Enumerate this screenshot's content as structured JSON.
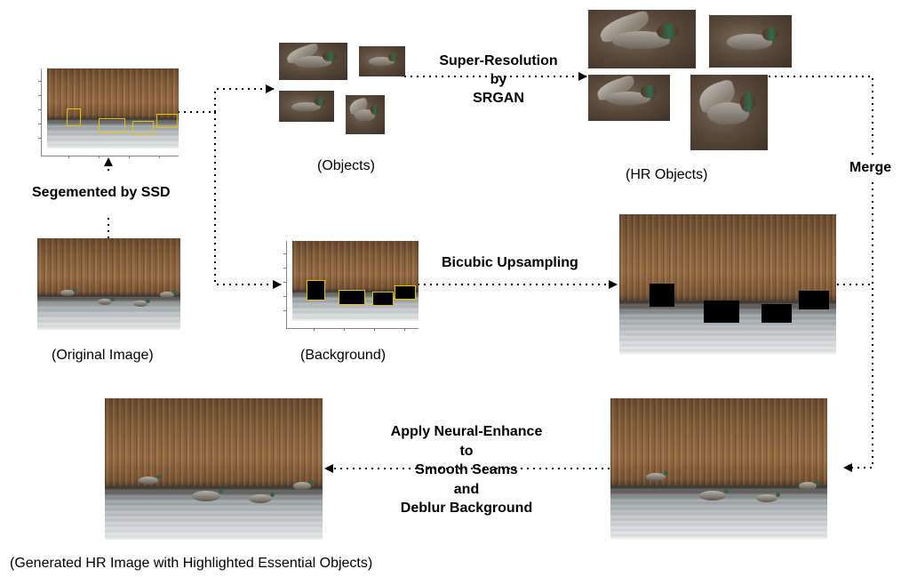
{
  "labels": {
    "segmented": "Segemented by SSD",
    "super_resolution": [
      "Super-Resolution",
      "by",
      "SRGAN"
    ],
    "merge": "Merge",
    "bicubic": "Bicubic Upsampling",
    "neural_enhance": [
      "Apply Neural-Enhance",
      "to",
      "Smooth Seams",
      "and",
      "Deblur Background"
    ]
  },
  "captions": {
    "original": "(Original Image)",
    "objects": "(Objects)",
    "hr_objects": "(HR Objects)",
    "background": "(Background)",
    "generated": "(Generated HR Image with Highlighted Essential Objects)"
  },
  "colors": {
    "detection_box": "#e4c400",
    "arrow": "#000000",
    "mask": "#000000"
  }
}
